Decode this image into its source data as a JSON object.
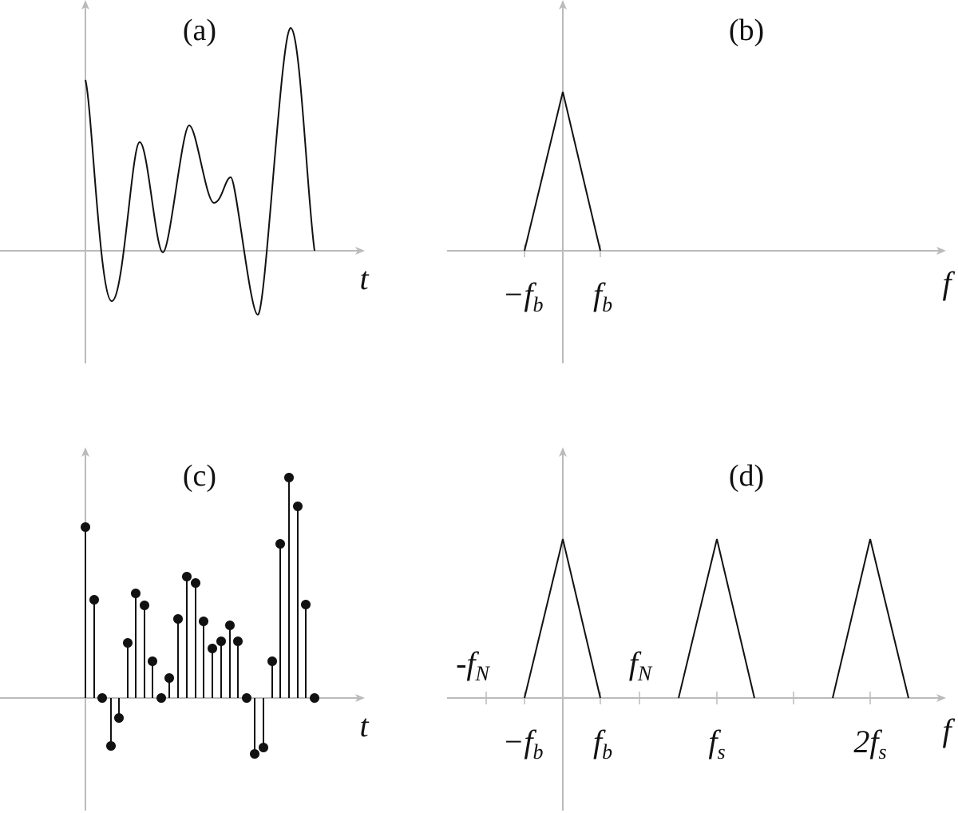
{
  "panels": [
    {
      "title": "(a)",
      "axis_label": "t"
    },
    {
      "title": "(b)",
      "axis_label": "f",
      "labels": [
        {
          "main": "−f",
          "sub": "b"
        },
        {
          "main": "f",
          "sub": "b"
        }
      ]
    },
    {
      "title": "(c)",
      "axis_label": "t"
    },
    {
      "title": "(d)",
      "axis_label": "f",
      "labels": [
        {
          "main": "-f",
          "sub": "N"
        },
        {
          "main": "f",
          "sub": "N"
        },
        {
          "main": "−f",
          "sub": "b"
        },
        {
          "main": "f",
          "sub": "b"
        },
        {
          "main": "f",
          "sub": "s"
        },
        {
          "main": "2f",
          "sub": "s"
        }
      ]
    }
  ]
}
